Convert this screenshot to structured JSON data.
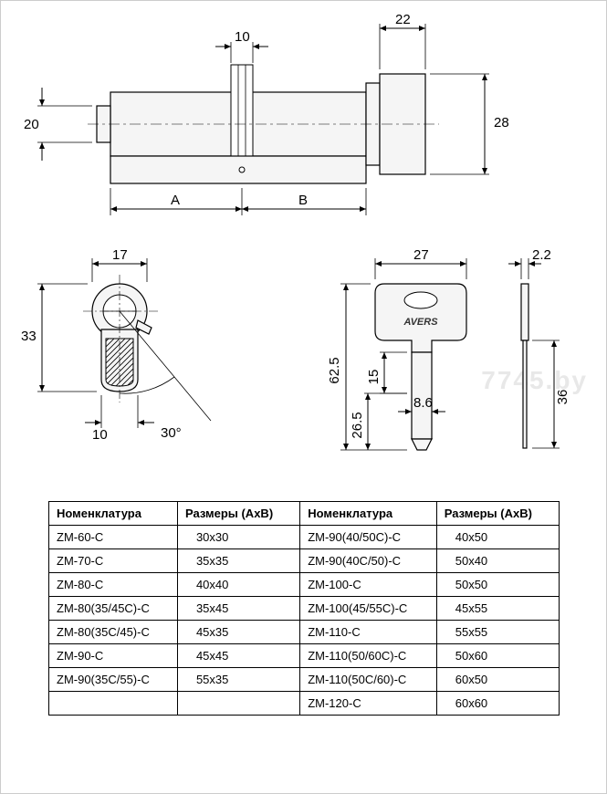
{
  "watermark": "7745.by",
  "cylinder": {
    "dim_22": "22",
    "dim_28": "28",
    "dim_10": "10",
    "dim_20": "20",
    "label_A": "A",
    "label_B": "B"
  },
  "profile": {
    "dim_17": "17",
    "dim_33": "33",
    "dim_10": "10",
    "dim_30deg": "30°"
  },
  "key": {
    "dim_27": "27",
    "dim_2_2": "2.2",
    "dim_36": "36",
    "dim_62_5": "62.5",
    "dim_15": "15",
    "dim_26_5": "26.5",
    "dim_8_6": "8.6",
    "brand": "AVERS"
  },
  "table": {
    "headers": {
      "col1": "Номенклатура",
      "col2": "Размеры (AxB)",
      "col3": "Номенклатура",
      "col4": "Размеры (AxB)"
    },
    "rows": [
      {
        "c1": "ZM-60-C",
        "c2": "30x30",
        "c3": "ZM-90(40/50C)-C",
        "c4": "40x50"
      },
      {
        "c1": "ZM-70-C",
        "c2": "35x35",
        "c3": "ZM-90(40C/50)-C",
        "c4": "50x40"
      },
      {
        "c1": "ZM-80-C",
        "c2": "40x40",
        "c3": "ZM-100-C",
        "c4": "50x50"
      },
      {
        "c1": "ZM-80(35/45C)-C",
        "c2": "35x45",
        "c3": "ZM-100(45/55C)-C",
        "c4": "45x55"
      },
      {
        "c1": "ZM-80(35C/45)-C",
        "c2": "45x35",
        "c3": "ZM-110-C",
        "c4": "55x55"
      },
      {
        "c1": "ZM-90-C",
        "c2": "45x45",
        "c3": "ZM-110(50/60C)-C",
        "c4": "50x60"
      },
      {
        "c1": "ZM-90(35C/55)-C",
        "c2": "55x35",
        "c3": "ZM-110(50C/60)-C",
        "c4": "60x50"
      },
      {
        "c1": "",
        "c2": "",
        "c3": "ZM-120-C",
        "c4": "60x60"
      }
    ]
  },
  "styling": {
    "stroke_color": "#000000",
    "background": "#ffffff",
    "part_fill": "#f5f5f5",
    "watermark_color": "#e8e8e8",
    "dim_fontsize": 15,
    "table_fontsize": 13,
    "border_width": 1,
    "arrow_size": 5
  }
}
